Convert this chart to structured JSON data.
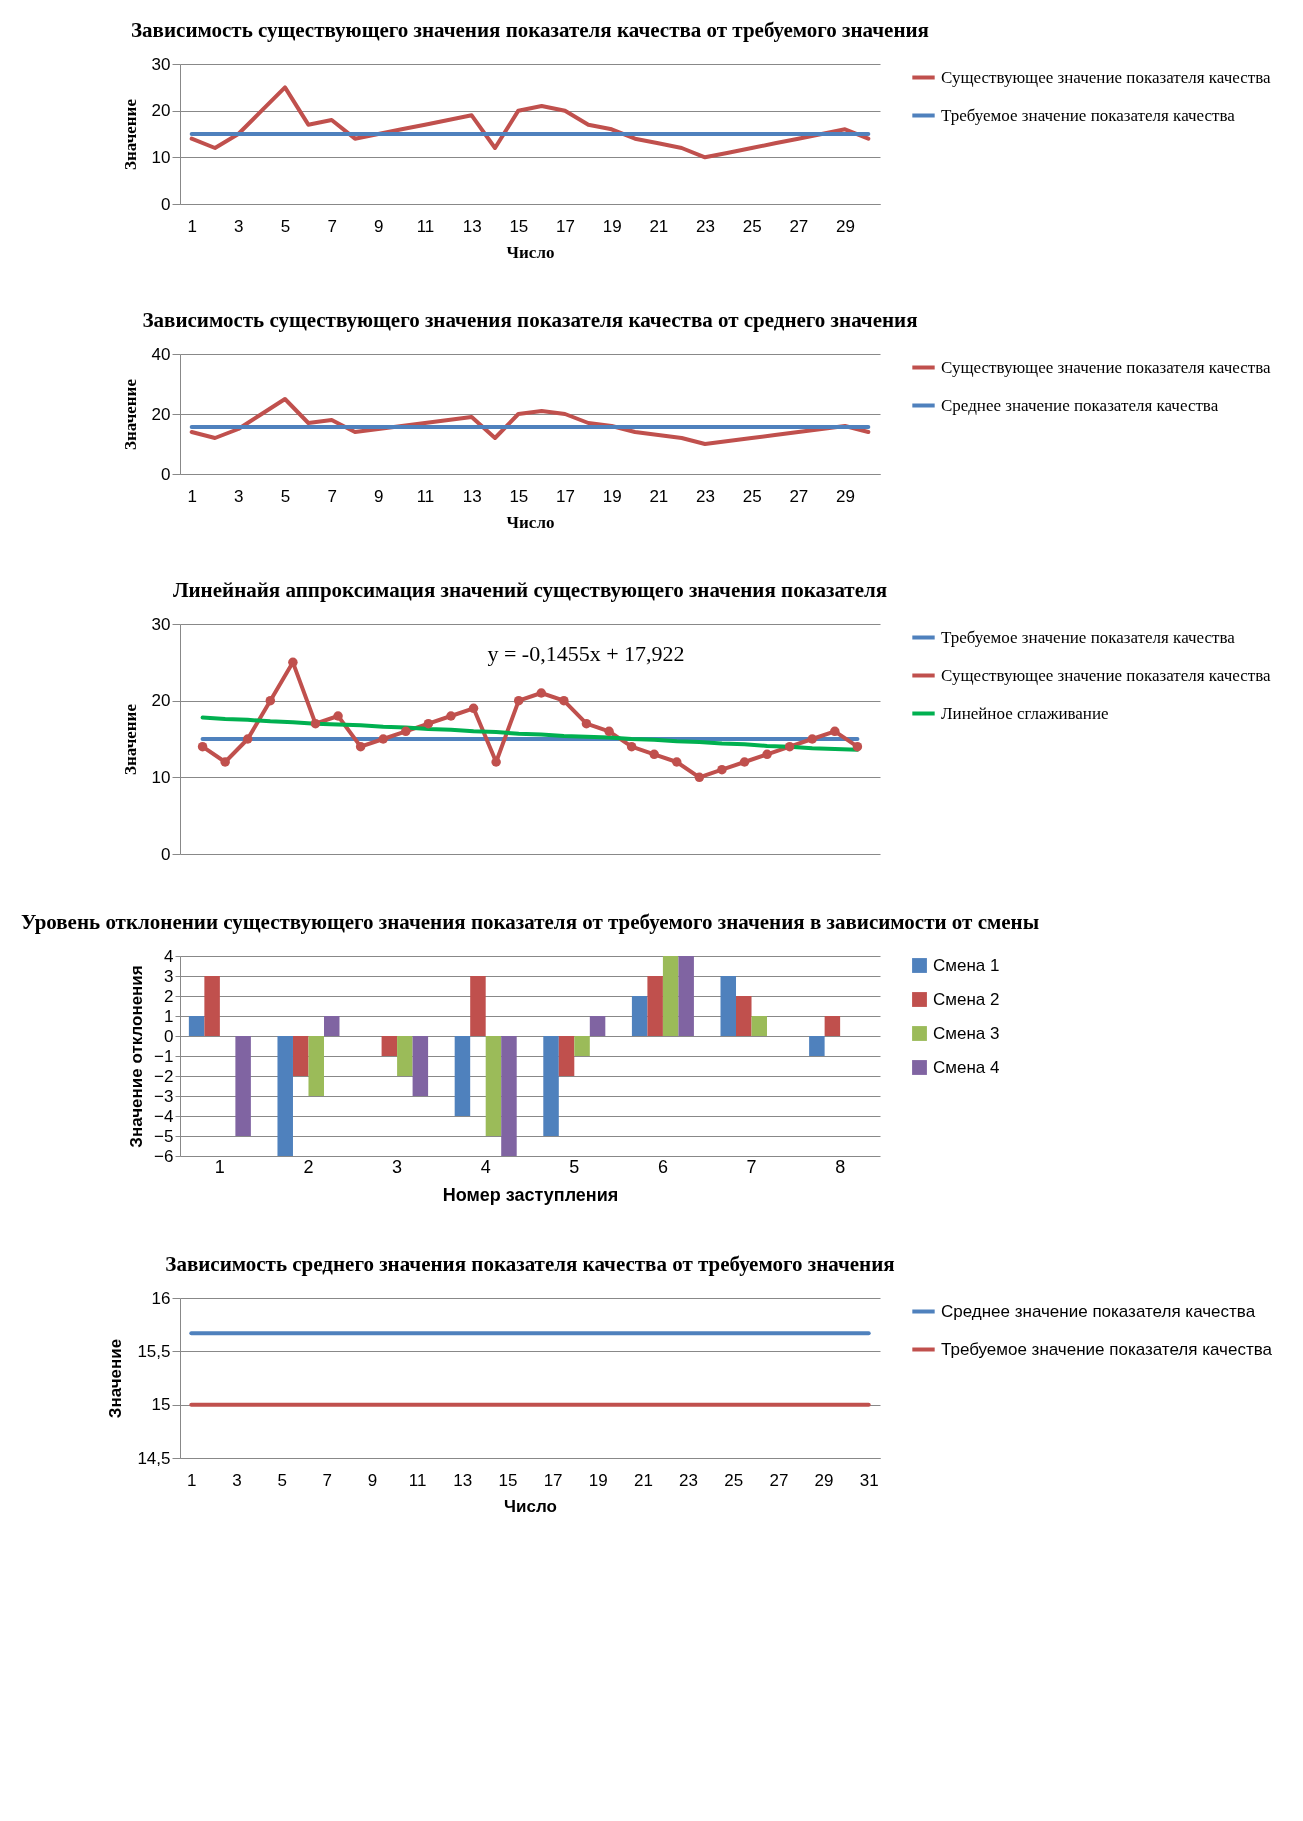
{
  "chart_data": [
    {
      "type": "line",
      "title": "Зависимость существующего значения показателя качества от требуемого значения",
      "xlabel": "Число",
      "ylabel": "Значение",
      "x": [
        1,
        2,
        3,
        4,
        5,
        6,
        7,
        8,
        9,
        10,
        11,
        12,
        13,
        14,
        15,
        16,
        17,
        18,
        19,
        20,
        21,
        22,
        23,
        24,
        25,
        26,
        27,
        28,
        29,
        30
      ],
      "xlim": [
        0.5,
        30.5
      ],
      "xticks": [
        1,
        3,
        5,
        7,
        9,
        11,
        13,
        15,
        17,
        19,
        21,
        23,
        25,
        27,
        29
      ],
      "ylim": [
        0,
        30
      ],
      "yticks": [
        0,
        10,
        20,
        30
      ],
      "grid": "y",
      "legend": "right",
      "series": [
        {
          "name": "Существующее значение показателя качества",
          "color": "#c0504d",
          "values": [
            14,
            12,
            15,
            20,
            25,
            17,
            18,
            14,
            15,
            16,
            17,
            18,
            19,
            12,
            20,
            21,
            20,
            17,
            16,
            14,
            13,
            12,
            10,
            11,
            12,
            13,
            14,
            15,
            16,
            14
          ]
        },
        {
          "name": "Требуемое значение показателя качества",
          "color": "#4f81bd",
          "values": [
            15,
            15,
            15,
            15,
            15,
            15,
            15,
            15,
            15,
            15,
            15,
            15,
            15,
            15,
            15,
            15,
            15,
            15,
            15,
            15,
            15,
            15,
            15,
            15,
            15,
            15,
            15,
            15,
            15,
            15
          ]
        }
      ]
    },
    {
      "type": "line",
      "title": "Зависимость существующего значения показателя качества от среднего значения",
      "xlabel": "Число",
      "ylabel": "Значение",
      "x": [
        1,
        2,
        3,
        4,
        5,
        6,
        7,
        8,
        9,
        10,
        11,
        12,
        13,
        14,
        15,
        16,
        17,
        18,
        19,
        20,
        21,
        22,
        23,
        24,
        25,
        26,
        27,
        28,
        29,
        30
      ],
      "xlim": [
        0.5,
        30.5
      ],
      "xticks": [
        1,
        3,
        5,
        7,
        9,
        11,
        13,
        15,
        17,
        19,
        21,
        23,
        25,
        27,
        29
      ],
      "ylim": [
        0,
        40
      ],
      "yticks": [
        0,
        20,
        40
      ],
      "grid": "y",
      "legend": "right",
      "series": [
        {
          "name": "Существующее значение показателя качества",
          "color": "#c0504d",
          "values": [
            14,
            12,
            15,
            20,
            25,
            17,
            18,
            14,
            15,
            16,
            17,
            18,
            19,
            12,
            20,
            21,
            20,
            17,
            16,
            14,
            13,
            12,
            10,
            11,
            12,
            13,
            14,
            15,
            16,
            14
          ]
        },
        {
          "name": "Среднее значение показателя качества",
          "color": "#4f81bd",
          "values": [
            15.7,
            15.7,
            15.7,
            15.7,
            15.7,
            15.7,
            15.7,
            15.7,
            15.7,
            15.7,
            15.7,
            15.7,
            15.7,
            15.7,
            15.7,
            15.7,
            15.7,
            15.7,
            15.7,
            15.7,
            15.7,
            15.7,
            15.7,
            15.7,
            15.7,
            15.7,
            15.7,
            15.7,
            15.7,
            15.7
          ]
        }
      ]
    },
    {
      "type": "line",
      "title": "Линейнайя аппроксимация значений существующего значения показателя",
      "ylabel": "Значение",
      "categories": [
        null,
        null,
        null,
        null,
        null,
        null,
        null,
        null,
        null,
        null,
        null,
        null,
        null,
        null,
        null,
        null,
        null,
        null,
        null,
        null,
        null,
        null,
        null,
        null,
        null,
        null,
        null,
        null,
        null,
        null
      ],
      "ylim": [
        0,
        30
      ],
      "yticks": [
        0,
        10,
        20,
        30
      ],
      "grid": "y",
      "legend": "right",
      "tick_labels": "y",
      "annotations": [
        "y = -0,1455x + 17,922"
      ],
      "series": [
        {
          "name": "Требуемое значение показателя качества",
          "color": "#4f81bd",
          "values": [
            15,
            15,
            15,
            15,
            15,
            15,
            15,
            15,
            15,
            15,
            15,
            15,
            15,
            15,
            15,
            15,
            15,
            15,
            15,
            15,
            15,
            15,
            15,
            15,
            15,
            15,
            15,
            15,
            15,
            15
          ]
        },
        {
          "name": "Существующее значение показателя качества",
          "color": "#c0504d",
          "marker": "circle",
          "values": [
            14,
            12,
            15,
            20,
            25,
            17,
            18,
            14,
            15,
            16,
            17,
            18,
            19,
            12,
            20,
            21,
            20,
            17,
            16,
            14,
            13,
            12,
            10,
            11,
            12,
            13,
            14,
            15,
            16,
            14
          ]
        },
        {
          "name": "Линейное сглаживание",
          "color": "#00b050",
          "type": "line",
          "values": [
            17.8,
            17.6,
            17.5,
            17.3,
            17.2,
            17.0,
            16.9,
            16.8,
            16.6,
            16.5,
            16.3,
            16.2,
            16.0,
            15.9,
            15.7,
            15.6,
            15.4,
            15.3,
            15.2,
            15.0,
            14.9,
            14.7,
            14.6,
            14.4,
            14.3,
            14.1,
            14.0,
            13.8,
            13.7,
            13.6
          ]
        }
      ]
    },
    {
      "type": "bar",
      "title": "Уровень отклонении существующего значения показателя от требуемого значения в зависимости от смены",
      "xlabel": "Номер заступления",
      "ylabel": "Значение отклонения",
      "categories": [
        "1",
        "2",
        "3",
        "4",
        "5",
        "6",
        "7",
        "8"
      ],
      "ylim": [
        -6,
        4
      ],
      "yticks": [
        -6,
        -5,
        -4,
        -3,
        -2,
        -1,
        0,
        1,
        2,
        3,
        4
      ],
      "grid": "y",
      "legend": "right",
      "series": [
        {
          "name": "Смена 1",
          "color": "#4f81bd",
          "values": [
            1,
            -6,
            0,
            -4,
            -5,
            2,
            3,
            -1
          ]
        },
        {
          "name": "Смена 2",
          "color": "#c0504d",
          "values": [
            3,
            -2,
            -1,
            3,
            -2,
            3,
            2,
            1
          ]
        },
        {
          "name": "Смена 3",
          "color": "#9bbb59",
          "values": [
            0,
            -3,
            -2,
            -5,
            -1,
            4,
            1,
            0
          ]
        },
        {
          "name": "Смена 4",
          "color": "#8064a2",
          "values": [
            -5,
            1,
            -3,
            -6,
            1,
            4,
            0,
            0
          ]
        }
      ]
    },
    {
      "type": "line",
      "title": "Зависимость среднего значения показателя качества от требуемого значения",
      "xlabel": "Число",
      "ylabel": "Значение",
      "x": [
        1,
        2,
        3,
        4,
        5,
        6,
        7,
        8,
        9,
        10,
        11,
        12,
        13,
        14,
        15,
        16,
        17,
        18,
        19,
        20,
        21,
        22,
        23,
        24,
        25,
        26,
        27,
        28,
        29,
        30,
        31
      ],
      "xlim": [
        0.5,
        31.5
      ],
      "xticks": [
        1,
        3,
        5,
        7,
        9,
        11,
        13,
        15,
        17,
        19,
        21,
        23,
        25,
        27,
        29,
        31
      ],
      "ylim": [
        14.5,
        16
      ],
      "yticks": [
        {
          "value": 14.5,
          "label": "14,5"
        },
        15,
        {
          "value": 15.5,
          "label": "15,5"
        },
        16
      ],
      "grid": "y",
      "legend": "right",
      "series": [
        {
          "name": "Среднее значение показателя качества",
          "color": "#4f81bd",
          "values": [
            15.67,
            15.67,
            15.67,
            15.67,
            15.67,
            15.67,
            15.67,
            15.67,
            15.67,
            15.67,
            15.67,
            15.67,
            15.67,
            15.67,
            15.67,
            15.67,
            15.67,
            15.67,
            15.67,
            15.67,
            15.67,
            15.67,
            15.67,
            15.67,
            15.67,
            15.67,
            15.67,
            15.67,
            15.67,
            15.67,
            15.67
          ]
        },
        {
          "name": "Требуемое значение показателя качества",
          "color": "#c0504d",
          "values": [
            15,
            15,
            15,
            15,
            15,
            15,
            15,
            15,
            15,
            15,
            15,
            15,
            15,
            15,
            15,
            15,
            15,
            15,
            15,
            15,
            15,
            15,
            15,
            15,
            15,
            15,
            15,
            15,
            15,
            15,
            15
          ]
        }
      ]
    }
  ]
}
